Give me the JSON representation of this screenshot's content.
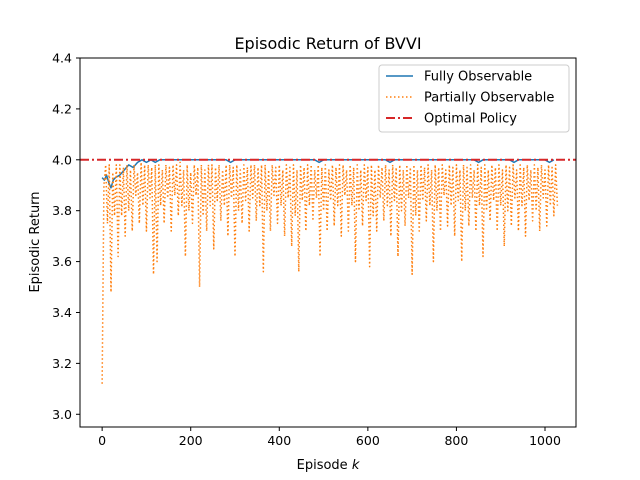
{
  "chart_data": {
    "type": "line",
    "title": "Episodic Return of BVVI",
    "xlabel": "Episode",
    "xlabel_var": "k",
    "ylabel": "Episodic Return",
    "xlim": [
      -50,
      1070
    ],
    "ylim": [
      2.95,
      4.4
    ],
    "xticks": [
      0,
      200,
      400,
      600,
      800,
      1000
    ],
    "yticks": [
      3.0,
      3.2,
      3.4,
      3.6,
      3.8,
      4.0,
      4.2,
      4.4
    ],
    "grid": false,
    "legend_position": "top-right",
    "series": [
      {
        "name": "Fully Observable",
        "style": "solid",
        "color": "#1f77b4",
        "x": [
          0,
          5,
          10,
          15,
          20,
          25,
          30,
          40,
          50,
          60,
          70,
          80,
          90,
          100,
          110,
          120,
          130,
          150,
          180,
          200,
          230,
          260,
          280,
          290,
          300,
          320,
          350,
          380,
          400,
          450,
          480,
          490,
          500,
          550,
          600,
          640,
          650,
          660,
          700,
          750,
          800,
          840,
          850,
          860,
          900,
          920,
          930,
          940,
          960,
          980,
          1000,
          1010,
          1020
        ],
        "y": [
          3.93,
          3.92,
          3.94,
          3.91,
          3.89,
          3.92,
          3.93,
          3.94,
          3.96,
          3.98,
          3.97,
          3.99,
          4.0,
          3.99,
          4.0,
          3.99,
          4.0,
          4.0,
          4.0,
          4.0,
          4.0,
          4.0,
          4.0,
          3.99,
          4.0,
          4.0,
          4.0,
          4.0,
          4.0,
          4.0,
          4.0,
          3.99,
          4.0,
          4.0,
          4.0,
          4.0,
          3.99,
          4.0,
          4.0,
          4.0,
          4.0,
          4.0,
          3.99,
          4.0,
          4.0,
          4.0,
          3.99,
          4.0,
          4.0,
          4.0,
          4.0,
          3.99,
          4.0
        ]
      },
      {
        "name": "Partially Observable",
        "style": "dotted",
        "color": "#ff7f0e",
        "x_start": 0,
        "x_step": 4,
        "y": [
          3.12,
          3.9,
          3.98,
          3.75,
          3.98,
          3.48,
          3.95,
          3.78,
          3.98,
          3.62,
          3.98,
          3.78,
          3.97,
          3.7,
          3.98,
          3.8,
          3.96,
          3.72,
          3.98,
          3.86,
          3.95,
          3.75,
          3.99,
          3.82,
          3.98,
          3.72,
          3.98,
          3.85,
          3.97,
          3.55,
          3.98,
          3.6,
          3.98,
          3.82,
          3.96,
          3.75,
          3.98,
          3.85,
          3.97,
          3.72,
          3.98,
          3.86,
          3.98,
          3.78,
          3.99,
          3.82,
          3.96,
          3.62,
          3.98,
          3.8,
          3.95,
          3.75,
          3.98,
          3.86,
          3.97,
          3.5,
          3.98,
          3.78,
          3.96,
          3.72,
          3.98,
          3.82,
          3.98,
          3.65,
          3.97,
          3.84,
          3.98,
          3.76,
          3.96,
          3.82,
          3.98,
          3.7,
          3.98,
          3.85,
          3.97,
          3.62,
          3.98,
          3.8,
          3.96,
          3.75,
          3.98,
          3.84,
          3.97,
          3.72,
          3.98,
          3.85,
          3.98,
          3.76,
          3.97,
          3.82,
          3.98,
          3.56,
          3.98,
          3.8,
          3.96,
          3.72,
          3.98,
          3.86,
          3.97,
          3.75,
          3.98,
          3.82,
          3.96,
          3.7,
          3.98,
          3.85,
          3.97,
          3.66,
          3.98,
          3.78,
          3.96,
          3.56,
          3.98,
          3.84,
          3.97,
          3.72,
          3.98,
          3.82,
          3.98,
          3.76,
          3.96,
          3.85,
          3.98,
          3.62,
          3.97,
          3.8,
          3.98,
          3.72,
          3.96,
          3.84,
          3.98,
          3.74,
          3.97,
          3.82,
          3.98,
          3.7,
          3.98,
          3.86,
          3.96,
          3.72,
          3.98,
          3.82,
          3.97,
          3.6,
          3.98,
          3.8,
          3.96,
          3.74,
          3.98,
          3.84,
          3.97,
          3.58,
          3.98,
          3.78,
          3.96,
          3.72,
          3.98,
          3.85,
          3.97,
          3.76,
          3.98,
          3.82,
          3.96,
          3.7,
          3.98,
          3.84,
          3.97,
          3.62,
          3.98,
          3.8,
          3.96,
          3.74,
          3.98,
          3.85,
          3.97,
          3.55,
          3.98,
          3.78,
          3.96,
          3.72,
          3.98,
          3.84,
          3.97,
          3.76,
          3.98,
          3.82,
          3.96,
          3.6,
          3.98,
          3.8,
          3.97,
          3.72,
          3.98,
          3.86,
          3.96,
          3.74,
          3.98,
          3.82,
          3.97,
          3.7,
          3.98,
          3.84,
          3.96,
          3.6,
          3.98,
          3.8,
          3.97,
          3.74,
          3.98,
          3.85,
          3.96,
          3.72,
          3.98,
          3.82,
          3.97,
          3.62,
          3.98,
          3.8,
          3.96,
          3.76,
          3.98,
          3.84,
          3.97,
          3.72,
          3.98,
          3.82,
          3.96,
          3.66,
          3.98,
          3.8,
          3.97,
          3.74,
          3.98,
          3.85,
          3.96,
          3.72,
          3.98,
          3.82,
          3.97,
          3.7,
          3.98,
          3.84,
          3.96,
          3.76,
          3.98,
          3.8,
          3.97,
          3.72,
          3.98,
          3.85,
          3.96,
          3.74,
          3.98,
          3.82,
          3.97,
          3.78,
          3.98,
          3.82
        ]
      },
      {
        "name": "Optimal Policy",
        "style": "dashdot",
        "color": "#d62728",
        "x": [
          -50,
          1070
        ],
        "y": [
          4.0,
          4.0
        ]
      }
    ]
  }
}
